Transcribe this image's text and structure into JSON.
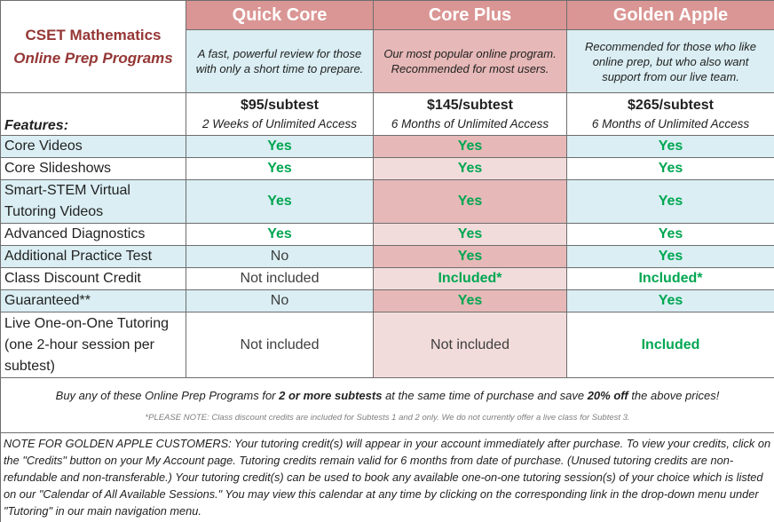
{
  "title": {
    "line1": "CSET Mathematics",
    "line2": "Online Prep Programs"
  },
  "plans": [
    {
      "name": "Quick Core",
      "description": "A fast, powerful review for those with only a short time to prepare.",
      "price": "$95/subtest",
      "access": "2 Weeks of Unlimited Access"
    },
    {
      "name": "Core Plus",
      "description": "Our most popular online program.  Recommended for most users.",
      "price": "$145/subtest",
      "access": "6 Months of Unlimited Access"
    },
    {
      "name": "Golden Apple",
      "description": "Recommended for those who like online prep, but who also want support from our live team.",
      "price": "$265/subtest",
      "access": "6 Months of Unlimited Access"
    }
  ],
  "features_label": "Features:",
  "features": [
    {
      "name": "Core Videos",
      "values": [
        "Yes",
        "Yes",
        "Yes"
      ]
    },
    {
      "name": "Core Slideshows",
      "values": [
        "Yes",
        "Yes",
        "Yes"
      ]
    },
    {
      "name": "Smart-STEM Virtual Tutoring Videos",
      "values": [
        "Yes",
        "Yes",
        "Yes"
      ]
    },
    {
      "name": "Advanced Diagnostics",
      "values": [
        "Yes",
        "Yes",
        "Yes"
      ]
    },
    {
      "name": "Additional Practice Test",
      "values": [
        "No",
        "Yes",
        "Yes"
      ]
    },
    {
      "name": "Class Discount Credit",
      "values": [
        "Not included",
        "Included*",
        "Included*"
      ]
    },
    {
      "name": "Guaranteed**",
      "values": [
        "No",
        "Yes",
        "Yes"
      ]
    },
    {
      "name": "Live One-on-One Tutoring (one 2-hour session per subtest)",
      "values": [
        "Not included",
        "Not included",
        "Included"
      ]
    }
  ],
  "promo": {
    "before": "Buy any of these Online Prep Programs for ",
    "bold1": "2 or more subtests",
    "middle": " at the same time of purchase and save ",
    "bold2": "20% off",
    "after": " the above prices!",
    "footnote": "*PLEASE NOTE: Class discount credits are included for Subtests 1 and 2 only.  We do not currently offer a live class for Subtest 3."
  },
  "note": "NOTE FOR GOLDEN APPLE CUSTOMERS: Your tutoring credit(s) will appear in your account immediately after purchase.  To view your credits, click on the \"Credits\" button on your My Account page.  Tutoring credits remain valid for 6 months from date of purchase.  (Unused tutoring credits are non-refundable and non-transferable.)  Your tutoring credit(s) can be used to book any available one-on-one tutoring session(s) of your choice which is listed on our \"Calendar of All Available Sessions.\"  You may view this calendar at any time by clicking on the corresponding link in the drop-down menu under \"Tutoring\" in our main navigation menu.",
  "colors": {
    "header": "#da9694",
    "blue": "#daeef3",
    "pink": "#e6b8b7",
    "pink_light": "#f2dcdb",
    "yes_green": "#00a651",
    "title_red": "#953735"
  }
}
